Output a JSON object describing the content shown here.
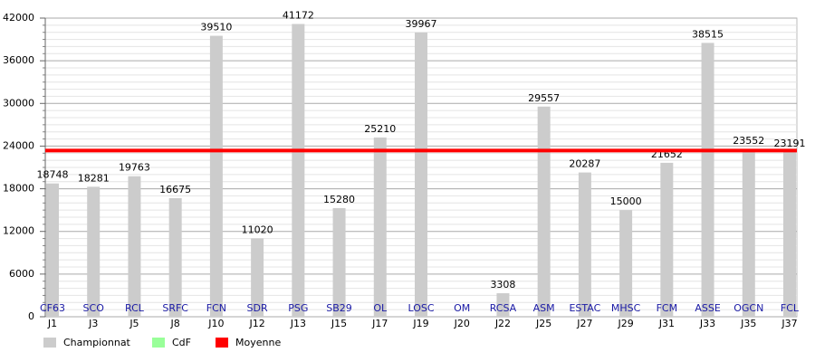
{
  "chart_data": {
    "type": "bar",
    "categories": [
      "J1",
      "J3",
      "J5",
      "J8",
      "J10",
      "J12",
      "J13",
      "J15",
      "J17",
      "J19",
      "J20",
      "J22",
      "J25",
      "J27",
      "J29",
      "J31",
      "J33",
      "J35",
      "J37"
    ],
    "teams": [
      "CF63",
      "SCO",
      "RCL",
      "SRFC",
      "FCN",
      "SDR",
      "PSG",
      "SB29",
      "OL",
      "LOSC",
      "OM",
      "RCSA",
      "ASM",
      "ESTAC",
      "MHSC",
      "FCM",
      "ASSE",
      "OGCN",
      "FCL"
    ],
    "series": [
      {
        "name": "Championnat",
        "color": "#cccccc",
        "values": [
          18748,
          18281,
          19763,
          16675,
          39510,
          11020,
          41172,
          15280,
          25210,
          39967,
          null,
          3308,
          29557,
          20287,
          15000,
          21652,
          38515,
          23552,
          23191
        ]
      }
    ],
    "legend": [
      {
        "name": "Championnat",
        "color": "#cccccc"
      },
      {
        "name": "CdF",
        "color": "#99ff99"
      },
      {
        "name": "Moyenne",
        "color": "#ff0000"
      }
    ],
    "average": 23372,
    "ylim": [
      0,
      42000
    ],
    "yticks": [
      0,
      6000,
      12000,
      18000,
      24000,
      30000,
      36000,
      42000
    ],
    "grid": true
  }
}
